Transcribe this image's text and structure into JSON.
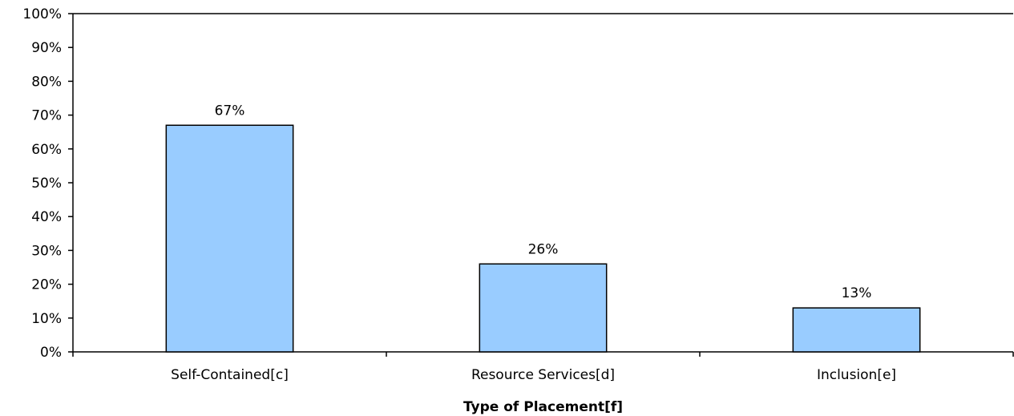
{
  "chart_data": {
    "type": "bar",
    "title": "",
    "xlabel": "Type of Placement[f]",
    "ylabel": "",
    "categories": [
      "Self-Contained[c]",
      "Resource Services[d]",
      "Inclusion[e]"
    ],
    "values": [
      67,
      26,
      13
    ],
    "data_labels": [
      "67%",
      "26%",
      "13%"
    ],
    "ylim": [
      0,
      100
    ],
    "yticks": [
      0,
      10,
      20,
      30,
      40,
      50,
      60,
      70,
      80,
      90,
      100
    ],
    "ytick_labels": [
      "0%",
      "10%",
      "20%",
      "30%",
      "40%",
      "50%",
      "60%",
      "70%",
      "80%",
      "90%",
      "100%"
    ],
    "grid": false,
    "legend": "none",
    "bar_color": "#99ccff",
    "bar_edge_color": "#000000"
  }
}
